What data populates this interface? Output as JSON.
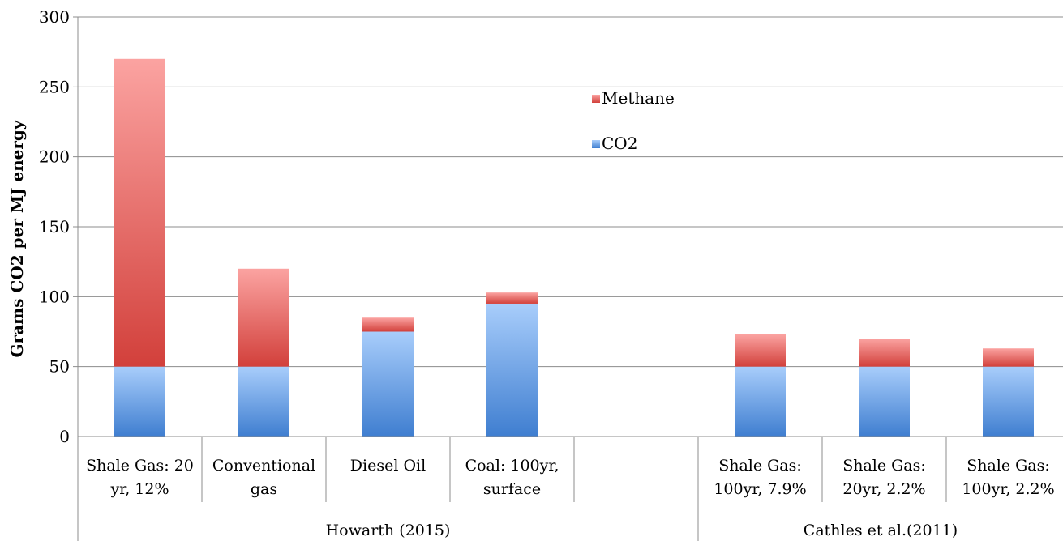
{
  "chart_data": {
    "type": "bar",
    "stacked": true,
    "ylabel": "Grams CO2 per MJ energy",
    "ylim": [
      0,
      300
    ],
    "yticks": [
      0,
      50,
      100,
      150,
      200,
      250,
      300
    ],
    "grid": true,
    "legend_position": "center-top",
    "categories": [
      [
        "Shale Gas: 20",
        "yr, 12%"
      ],
      [
        "Conventional",
        "gas"
      ],
      [
        "Diesel Oil"
      ],
      [
        "Coal: 100yr,",
        "surface"
      ],
      [
        ""
      ],
      [
        "Shale Gas:",
        "100yr, 7.9%"
      ],
      [
        "Shale Gas:",
        "20yr, 2.2%"
      ],
      [
        "Shale Gas:",
        "100yr, 2.2%"
      ]
    ],
    "groups": [
      {
        "label": "Howarth (2015)",
        "start": 0,
        "end": 4
      },
      {
        "label": "Cathles et al.(2011)",
        "start": 5,
        "end": 7
      }
    ],
    "series": [
      {
        "name": "CO2",
        "values": [
          50,
          50,
          75,
          95,
          0,
          50,
          50,
          50
        ],
        "color": "#4f89d4"
      },
      {
        "name": "Methane",
        "values": [
          220,
          70,
          10,
          8,
          0,
          23,
          20,
          13
        ],
        "color": "#d9534f"
      }
    ],
    "legend": [
      {
        "name": "Methane",
        "color": "#d9534f"
      },
      {
        "name": "CO2",
        "color": "#4f89d4"
      }
    ]
  }
}
